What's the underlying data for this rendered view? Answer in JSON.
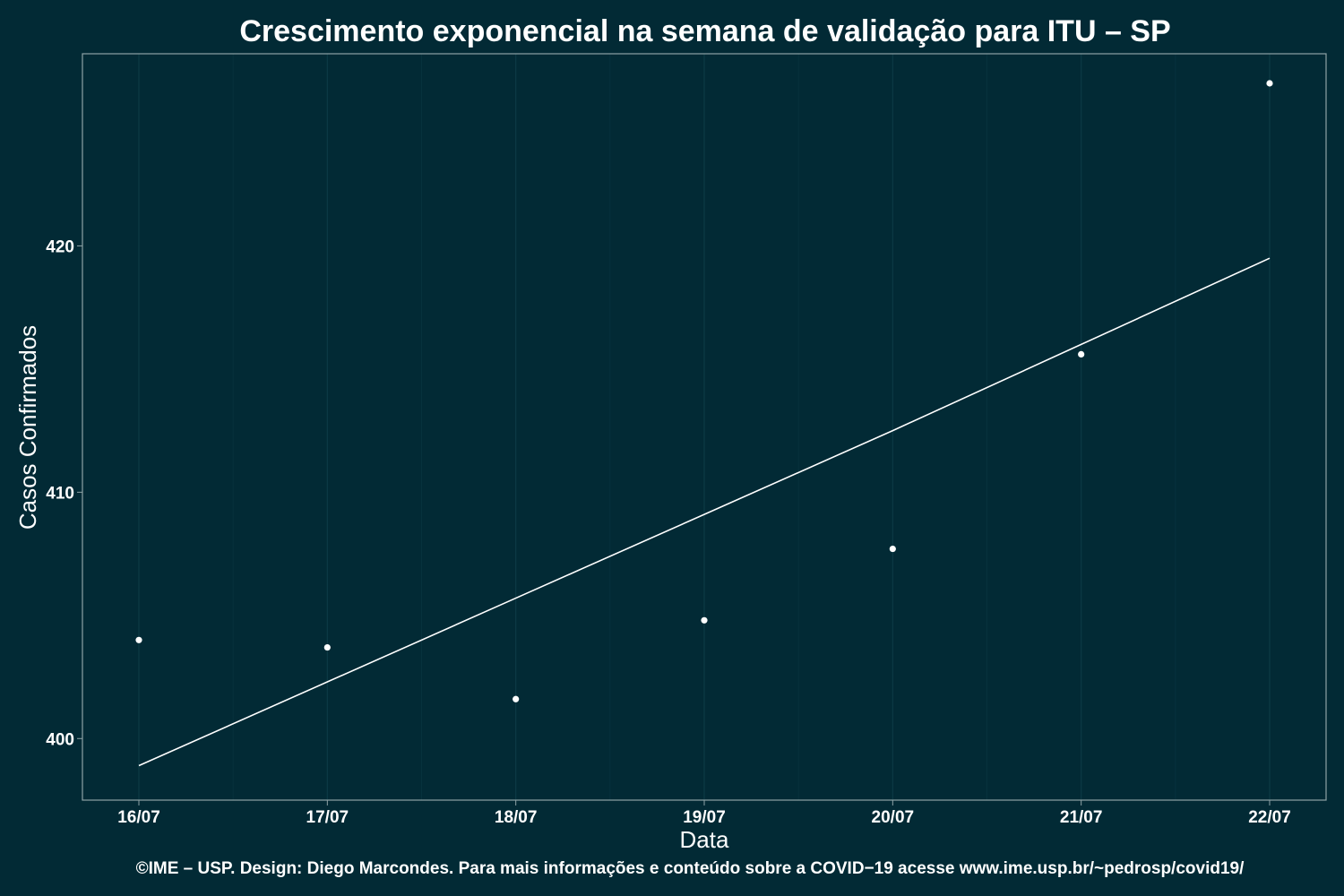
{
  "chart_data": {
    "type": "scatter",
    "title": "Crescimento exponencial na semana de validação para ITU – SP",
    "xlabel": "Data",
    "ylabel": "Casos Confirmados",
    "caption": "©IME – USP. Design: Diego Marcondes. Para mais informações e conteúdo sobre a COVID−19 acesse www.ime.usp.br/~pedrosp/covid19/",
    "categories": [
      "16/07",
      "17/07",
      "18/07",
      "19/07",
      "20/07",
      "21/07",
      "22/07"
    ],
    "series": [
      {
        "kind": "points",
        "values": [
          404.0,
          403.7,
          401.6,
          404.8,
          407.7,
          415.6,
          426.6
        ]
      },
      {
        "kind": "fit-line",
        "values": [
          398.9,
          402.3,
          405.7,
          409.1,
          412.5,
          416.0,
          419.5
        ]
      }
    ],
    "ylim": [
      397.5,
      427.8
    ],
    "yticks": [
      "400",
      "410",
      "420"
    ],
    "ytick_values": [
      400,
      410,
      420
    ],
    "grid": true,
    "legend": "none",
    "colors": {
      "background": "#022a35",
      "panel_border": "#8fa3a6",
      "grid_major": "#0c3a45",
      "grid_minor": "#07323d",
      "points": "#ffffff",
      "line": "#ffffff",
      "text": "#ffffff"
    }
  }
}
